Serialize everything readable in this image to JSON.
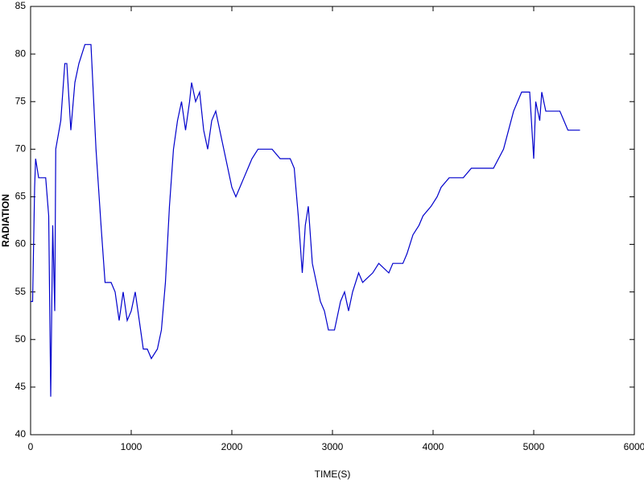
{
  "chart_data": {
    "type": "line",
    "x_label": "TIME(S)",
    "y_label": "RADIATION",
    "color": "#0000cc",
    "x": [
      0,
      20,
      40,
      50,
      80,
      150,
      180,
      200,
      220,
      240,
      250,
      300,
      340,
      360,
      400,
      440,
      480,
      540,
      600,
      650,
      700,
      740,
      800,
      840,
      880,
      920,
      960,
      1000,
      1040,
      1080,
      1120,
      1160,
      1200,
      1260,
      1300,
      1340,
      1380,
      1420,
      1460,
      1500,
      1540,
      1580,
      1600,
      1640,
      1680,
      1720,
      1760,
      1800,
      1840,
      1880,
      1920,
      1960,
      2000,
      2040,
      2080,
      2120,
      2160,
      2200,
      2260,
      2400,
      2480,
      2580,
      2620,
      2660,
      2700,
      2730,
      2760,
      2800,
      2840,
      2880,
      2920,
      2960,
      3020,
      3080,
      3120,
      3160,
      3200,
      3260,
      3300,
      3400,
      3460,
      3560,
      3600,
      3700,
      3740,
      3800,
      3860,
      3900,
      3980,
      4040,
      4080,
      4160,
      4300,
      4380,
      4600,
      4700,
      4800,
      4880,
      4960,
      5000,
      5020,
      5060,
      5080,
      5120,
      5260,
      5300,
      5340,
      5460
    ],
    "values": [
      54,
      54,
      66,
      69,
      67,
      67,
      63,
      44,
      62,
      53,
      70,
      73,
      79,
      79,
      72,
      77,
      79,
      81,
      81,
      70,
      62,
      56,
      56,
      55,
      52,
      55,
      52,
      53,
      55,
      52,
      49,
      49,
      48,
      49,
      51,
      56,
      64,
      70,
      73,
      75,
      72,
      75,
      77,
      75,
      76,
      72,
      70,
      73,
      74,
      72,
      70,
      68,
      66,
      65,
      66,
      67,
      68,
      69,
      70,
      70,
      69,
      69,
      68,
      63,
      57,
      62,
      64,
      58,
      56,
      54,
      53,
      51,
      51,
      54,
      55,
      53,
      55,
      57,
      56,
      57,
      58,
      57,
      58,
      58,
      59,
      61,
      62,
      63,
      64,
      65,
      66,
      67,
      67,
      68,
      68,
      70,
      74,
      76,
      76,
      69,
      75,
      73,
      76,
      74,
      74,
      73,
      72,
      72
    ],
    "xlim": [
      0,
      6000
    ],
    "ylim": [
      40,
      85
    ],
    "xticks": [
      0,
      1000,
      2000,
      3000,
      4000,
      5000,
      6000
    ],
    "yticks": [
      40,
      45,
      50,
      55,
      60,
      65,
      70,
      75,
      80,
      85
    ]
  }
}
